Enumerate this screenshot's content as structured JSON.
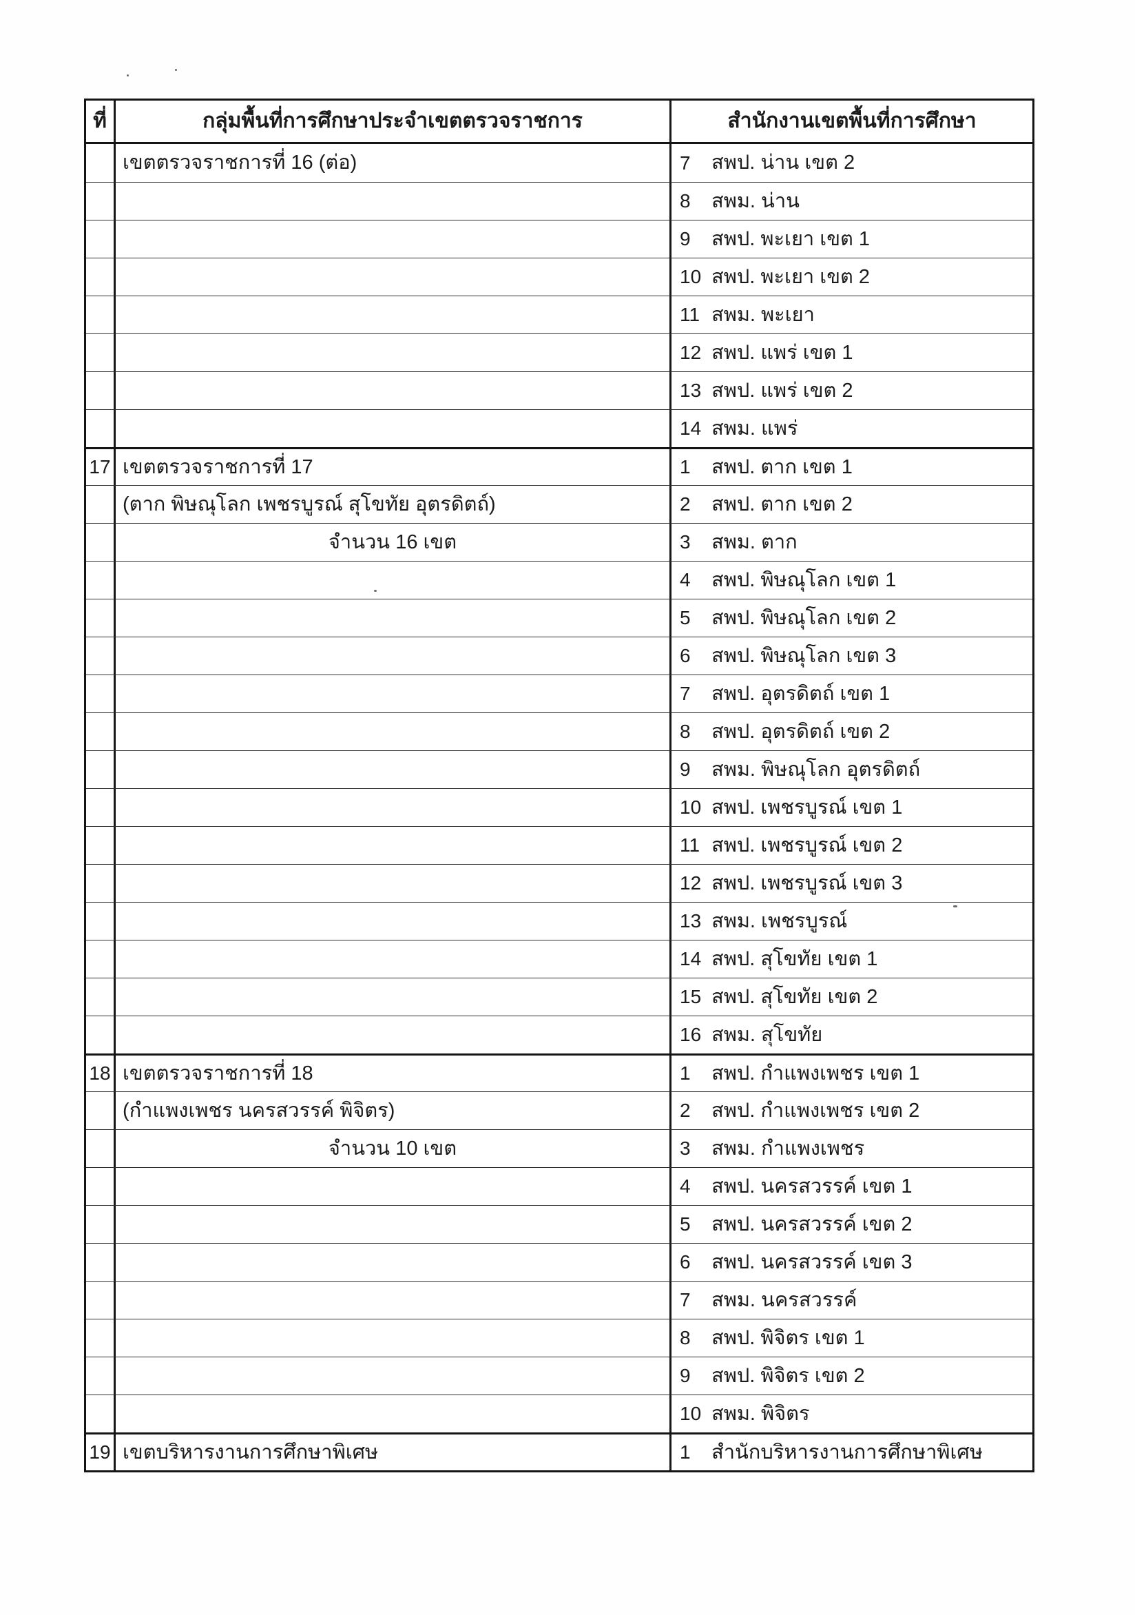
{
  "table": {
    "columns": [
      "ที่",
      "กลุ่มพื้นที่การศึกษาประจำเขตตรวจราชการ",
      "สำนักงานเขตพื้นที่การศึกษา"
    ],
    "rows": [
      {
        "no": "",
        "group": "เขตตรวจราชการที่ 16 (ต่อ)",
        "align": "left",
        "office_no": "7",
        "office": "สพป. น่าน เขต 2",
        "section": false
      },
      {
        "no": "",
        "group": "",
        "align": "left",
        "office_no": "8",
        "office": "สพม. น่าน",
        "section": false
      },
      {
        "no": "",
        "group": "",
        "align": "left",
        "office_no": "9",
        "office": "สพป. พะเยา เขต 1",
        "section": false
      },
      {
        "no": "",
        "group": "",
        "align": "left",
        "office_no": "10",
        "office": "สพป. พะเยา เขต 2",
        "section": false
      },
      {
        "no": "",
        "group": "",
        "align": "left",
        "office_no": "11",
        "office": "สพม. พะเยา",
        "section": false
      },
      {
        "no": "",
        "group": "",
        "align": "left",
        "office_no": "12",
        "office": "สพป. แพร่ เขต 1",
        "section": false
      },
      {
        "no": "",
        "group": "",
        "align": "left",
        "office_no": "13",
        "office": "สพป. แพร่ เขต 2",
        "section": false
      },
      {
        "no": "",
        "group": "",
        "align": "left",
        "office_no": "14",
        "office": "สพม. แพร่",
        "section": false
      },
      {
        "no": "17",
        "group": "เขตตรวจราชการที่ 17",
        "align": "left",
        "office_no": "1",
        "office": "สพป. ตาก เขต 1",
        "section": true
      },
      {
        "no": "",
        "group": "(ตาก พิษณุโลก เพชรบูรณ์ สุโขทัย อุตรดิตถ์)",
        "align": "left",
        "office_no": "2",
        "office": "สพป. ตาก เขต 2",
        "section": false
      },
      {
        "no": "",
        "group": "จำนวน 16 เขต",
        "align": "center",
        "office_no": "3",
        "office": "สพม. ตาก",
        "section": false
      },
      {
        "no": "",
        "group": "",
        "align": "left",
        "office_no": "4",
        "office": "สพป. พิษณุโลก เขต 1",
        "section": false
      },
      {
        "no": "",
        "group": "",
        "align": "left",
        "office_no": "5",
        "office": "สพป. พิษณุโลก เขต 2",
        "section": false
      },
      {
        "no": "",
        "group": "",
        "align": "left",
        "office_no": "6",
        "office": "สพป. พิษณุโลก เขต 3",
        "section": false
      },
      {
        "no": "",
        "group": "",
        "align": "left",
        "office_no": "7",
        "office": "สพป. อุตรดิตถ์ เขต 1",
        "section": false
      },
      {
        "no": "",
        "group": "",
        "align": "left",
        "office_no": "8",
        "office": "สพป. อุตรดิตถ์ เขต 2",
        "section": false
      },
      {
        "no": "",
        "group": "",
        "align": "left",
        "office_no": "9",
        "office": "สพม. พิษณุโลก อุตรดิตถ์",
        "section": false
      },
      {
        "no": "",
        "group": "",
        "align": "left",
        "office_no": "10",
        "office": "สพป. เพชรบูรณ์ เขต 1",
        "section": false
      },
      {
        "no": "",
        "group": "",
        "align": "left",
        "office_no": "11",
        "office": "สพป. เพชรบูรณ์ เขต 2",
        "section": false
      },
      {
        "no": "",
        "group": "",
        "align": "left",
        "office_no": "12",
        "office": "สพป. เพชรบูรณ์ เขต 3",
        "section": false
      },
      {
        "no": "",
        "group": "",
        "align": "left",
        "office_no": "13",
        "office": "สพม. เพชรบูรณ์",
        "section": false
      },
      {
        "no": "",
        "group": "",
        "align": "left",
        "office_no": "14",
        "office": "สพป. สุโขทัย เขต 1",
        "section": false
      },
      {
        "no": "",
        "group": "",
        "align": "left",
        "office_no": "15",
        "office": "สพป. สุโขทัย เขต 2",
        "section": false
      },
      {
        "no": "",
        "group": "",
        "align": "left",
        "office_no": "16",
        "office": "สพม. สุโขทัย",
        "section": false
      },
      {
        "no": "18",
        "group": "เขตตรวจราชการที่ 18",
        "align": "left",
        "office_no": "1",
        "office": "สพป. กำแพงเพชร เขต 1",
        "section": true
      },
      {
        "no": "",
        "group": "(กำแพงเพชร นครสวรรค์ พิจิตร)",
        "align": "left",
        "office_no": "2",
        "office": "สพป. กำแพงเพชร เขต 2",
        "section": false
      },
      {
        "no": "",
        "group": "จำนวน 10 เขต",
        "align": "center",
        "office_no": "3",
        "office": "สพม. กำแพงเพชร",
        "section": false
      },
      {
        "no": "",
        "group": "",
        "align": "left",
        "office_no": "4",
        "office": "สพป. นครสวรรค์ เขต 1",
        "section": false
      },
      {
        "no": "",
        "group": "",
        "align": "left",
        "office_no": "5",
        "office": "สพป. นครสวรรค์ เขต 2",
        "section": false
      },
      {
        "no": "",
        "group": "",
        "align": "left",
        "office_no": "6",
        "office": "สพป. นครสวรรค์ เขต 3",
        "section": false
      },
      {
        "no": "",
        "group": "",
        "align": "left",
        "office_no": "7",
        "office": "สพม. นครสวรรค์",
        "section": false
      },
      {
        "no": "",
        "group": "",
        "align": "left",
        "office_no": "8",
        "office": "สพป. พิจิตร เขต 1",
        "section": false
      },
      {
        "no": "",
        "group": "",
        "align": "left",
        "office_no": "9",
        "office": "สพป. พิจิตร เขต 2",
        "section": false
      },
      {
        "no": "",
        "group": "",
        "align": "left",
        "office_no": "10",
        "office": "สพม. พิจิตร",
        "section": false
      },
      {
        "no": "19",
        "group": "เขตบริหารงานการศึกษาพิเศษ",
        "align": "left",
        "office_no": "1",
        "office": "สำนักบริหารงานการศึกษาพิเศษ",
        "section": true
      }
    ]
  }
}
